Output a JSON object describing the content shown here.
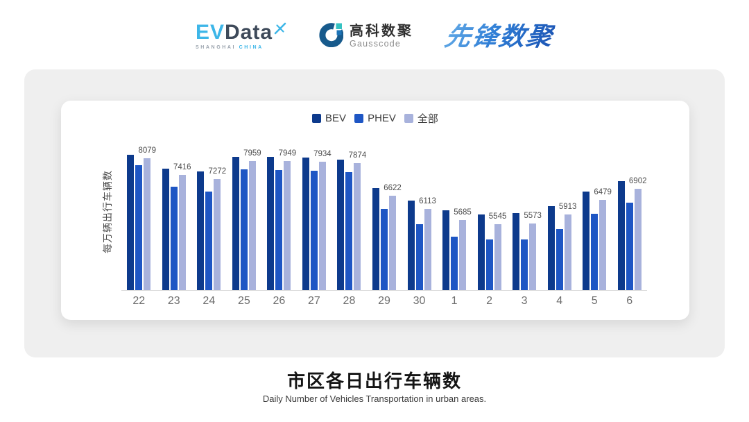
{
  "header": {
    "evdata_logo": {
      "ev": "EV",
      "data": "Data",
      "sub_left": "SHANGHAI",
      "sub_right": "CHINA",
      "color_light_blue": "#3db6e8",
      "color_dark_slate": "#3e4a5a"
    },
    "gausscode_logo": {
      "cn": "高科数聚",
      "en": "Gausscode",
      "color_ring": "#175a8c",
      "color_teal": "#35c2c2",
      "color_blue": "#1c74b8"
    },
    "pioneer_logo": {
      "text": "先锋数聚",
      "color_start": "#63aae6",
      "color_end": "#1b54b4"
    }
  },
  "chart_data": {
    "type": "bar",
    "title": "市区各日出行车辆数",
    "subtitle": "Daily Number of Vehicles Transportation in urban areas.",
    "ylabel": "每万辆出行车辆数",
    "xlabel": "",
    "categories": [
      "22",
      "23",
      "24",
      "25",
      "26",
      "27",
      "28",
      "29",
      "30",
      "1",
      "2",
      "3",
      "4",
      "5",
      "6"
    ],
    "series": [
      {
        "key": "bev",
        "name": "BEV",
        "color": "#0d3a8c",
        "values": [
          8190,
          7675,
          7560,
          8120,
          8120,
          8100,
          8015,
          6920,
          6440,
          6065,
          5915,
          5950,
          6233,
          6785,
          7200
        ]
      },
      {
        "key": "phev",
        "name": "PHEV",
        "color": "#1e56c4",
        "values": [
          7790,
          6980,
          6775,
          7630,
          7615,
          7590,
          7540,
          6120,
          5530,
          5065,
          4950,
          4945,
          5352,
          5940,
          6365
        ]
      },
      {
        "key": "all",
        "name": "全部",
        "color": "#a8b2dc",
        "labeled": true,
        "values": [
          8079,
          7416,
          7272,
          7959,
          7949,
          7934,
          7874,
          6622,
          6113,
          5685,
          5545,
          5573,
          5913,
          6479,
          6902
        ]
      }
    ],
    "value_labels": [
      8079,
      7416,
      7272,
      7959,
      7949,
      7934,
      7874,
      6622,
      6113,
      5685,
      5545,
      5573,
      5913,
      6479,
      6902
    ],
    "ylim": [
      3000,
      9000
    ],
    "grid": false,
    "legend_position": "top",
    "axis_line_color": "#dddddd",
    "label_color": "#4d4d4d",
    "tick_color": "#6e6e6e"
  }
}
